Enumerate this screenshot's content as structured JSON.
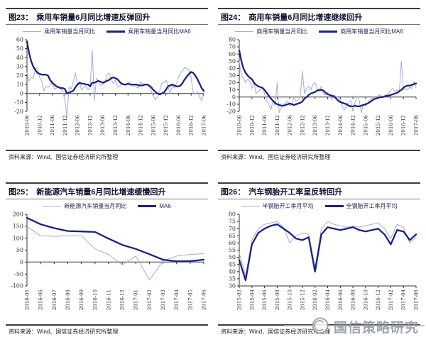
{
  "page": {
    "background": "#ffffff"
  },
  "colors": {
    "thin_line": "#a6acd8",
    "thick_line": "#1c2380",
    "title_text": "#10102e",
    "rule_dark": "#3d3d3d",
    "axis": "#333333",
    "watermark": "#888e9a"
  },
  "watermark": {
    "text": "国信策略研究",
    "logo": "guosen-circle-logo"
  },
  "chart_data": [
    {
      "id": "fig23",
      "type": "line",
      "fig_label": "图23：",
      "title": "乘用车销量6月同比增速反弹回升",
      "legend": [
        {
          "name": "乘用车销量当月同比",
          "style": "thin"
        },
        {
          "name": "乘用车销量当月同比MA6",
          "style": "thick"
        }
      ],
      "source": "资料来源：Wind、国信证券经济研究所整理",
      "x_range": "2010-06 to 2017-06 monthly",
      "xtick_every": 6,
      "xtick_labels": [
        "2010-06",
        "2010-12",
        "2011-06",
        "2011-12",
        "2012-06",
        "2012-12",
        "2013-06",
        "2013-12",
        "2014-06",
        "2014-12",
        "2015-06",
        "2015-12",
        "2016-06",
        "2016-12",
        "2017-06"
      ],
      "ylim": [
        -20,
        60
      ],
      "yticks": [
        60,
        50,
        40,
        30,
        20,
        10,
        0,
        -10,
        -20
      ],
      "grid": false,
      "legend_position": "top",
      "series": [
        {
          "name": "乘用车销量当月同比",
          "style": "thin",
          "values": [
            23,
            14,
            18,
            17,
            27,
            29,
            18,
            14,
            3,
            8,
            7,
            9,
            14,
            5,
            6,
            8,
            5,
            3,
            -8,
            -25,
            7,
            5,
            13,
            23,
            9,
            11,
            4,
            7,
            8,
            4,
            6,
            49,
            -8,
            17,
            13,
            9,
            10,
            12,
            21,
            23,
            16,
            11,
            15,
            7,
            8,
            10,
            11,
            9,
            12,
            13,
            8,
            9,
            7,
            6,
            13,
            11,
            9,
            10,
            8,
            3,
            -3,
            -7,
            -3,
            3,
            11,
            12,
            15,
            9,
            -1,
            9,
            6,
            11,
            18,
            23,
            26,
            29,
            28,
            26,
            17,
            1,
            -1,
            2,
            -4,
            -8,
            2
          ]
        },
        {
          "name": "乘用车销量当月同比MA6",
          "style": "thick",
          "values": [
            58,
            45,
            36,
            30,
            26,
            23,
            22,
            21,
            21,
            21,
            20,
            15,
            12,
            10,
            8,
            7,
            6,
            6,
            5,
            0,
            1,
            2,
            3,
            7,
            10,
            12,
            11,
            11,
            10,
            10,
            8,
            12,
            12,
            13,
            14,
            13,
            12,
            13,
            14,
            15,
            17,
            18,
            17,
            16,
            13,
            11,
            10,
            10,
            11,
            10,
            10,
            10,
            10,
            9,
            9,
            9,
            10,
            10,
            9,
            7,
            4,
            2,
            0,
            -1,
            0,
            1,
            4,
            8,
            9,
            10,
            9,
            8,
            8,
            9,
            12,
            16,
            19,
            22,
            24,
            23,
            20,
            16,
            11,
            6,
            3
          ]
        }
      ]
    },
    {
      "id": "fig24",
      "type": "line",
      "fig_label": "图24：",
      "title": "商用车销量6月同比增速继续回升",
      "legend": [
        {
          "name": "商用车销量当月同比",
          "style": "thin"
        },
        {
          "name": "商用车销量当月同比MA6",
          "style": "thick"
        }
      ],
      "source": "资料来源：Wind、国信证券经济研究所整理",
      "x_range": "2010-06 to 2017-06 monthly",
      "xtick_every": 6,
      "xtick_labels": [
        "2010-06",
        "2010-12",
        "2011-06",
        "2011-12",
        "2012-06",
        "2012-12",
        "2013-06",
        "2013-12",
        "2014-06",
        "2014-12",
        "2015-06",
        "2015-12",
        "2016-06",
        "2016-12",
        "2017-06"
      ],
      "ylim": [
        -20,
        80
      ],
      "yticks": [
        80,
        70,
        60,
        50,
        40,
        30,
        20,
        10,
        0,
        -10,
        -20
      ],
      "grid": false,
      "legend_position": "top",
      "series": [
        {
          "name": "商用车销量当月同比",
          "style": "thin",
          "values": [
            50,
            30,
            27,
            20,
            25,
            22,
            12,
            20,
            5,
            8,
            10,
            13,
            5,
            -5,
            -10,
            -18,
            -5,
            -12,
            20,
            -22,
            -15,
            -10,
            -8,
            -5,
            -12,
            -10,
            0,
            -6,
            -4,
            2,
            36,
            5,
            12,
            15,
            10,
            18,
            20,
            12,
            8,
            15,
            5,
            3,
            6,
            2,
            -3,
            3,
            1,
            -1,
            -4,
            -15,
            -18,
            -10,
            -8,
            -5,
            -20,
            -8,
            2,
            -5,
            -22,
            -10,
            -13,
            -8,
            -4,
            -2,
            0,
            -3,
            2,
            3,
            -1,
            1,
            2,
            5,
            10,
            12,
            8,
            10,
            6,
            50,
            10,
            12,
            10,
            14,
            12,
            22,
            13
          ]
        },
        {
          "name": "商用车销量当月同比MA6",
          "style": "thick",
          "values": [
            65,
            50,
            40,
            34,
            30,
            27,
            25,
            20,
            17,
            15,
            14,
            13,
            10,
            6,
            2,
            -2,
            -5,
            -8,
            -10,
            -11,
            -12,
            -12,
            -11,
            -10,
            -9,
            -10,
            -11,
            -10,
            -9,
            -8,
            -6,
            -2,
            0,
            3,
            5,
            6,
            7,
            9,
            10,
            10,
            9,
            6,
            4,
            3,
            2,
            1,
            -2,
            -5,
            -7,
            -8,
            -9,
            -10,
            -12,
            -13,
            -13,
            -12,
            -13,
            -13,
            -12,
            -11,
            -10,
            -9,
            -7,
            -5,
            -3,
            -2,
            -1,
            0,
            0,
            1,
            2,
            2,
            3,
            4,
            5,
            6,
            8,
            10,
            13,
            15,
            16,
            16,
            17,
            18,
            19
          ]
        }
      ]
    },
    {
      "id": "fig25",
      "type": "line",
      "fig_label": "图25：",
      "title": "新能源汽车销量6月同比增速缓慢回升",
      "legend": [
        {
          "name": "新能源汽车销量当月同比",
          "style": "thin"
        },
        {
          "name": "MA6",
          "style": "thick"
        }
      ],
      "source": "资料来源：Wind、国信证券经济研究所整理",
      "x_range": "2016-05 to 2017-06 monthly",
      "xtick_every": 1,
      "xtick_labels": [
        "2016-05",
        "2016-06",
        "2016-07",
        "2016-08",
        "2016-09",
        "2016-10",
        "2016-11",
        "2016-12",
        "2017-01",
        "2017-02",
        "2017-03",
        "2017-04",
        "2017-05",
        "2017-06"
      ],
      "ylim": [
        -100,
        200
      ],
      "yticks": [
        200,
        150,
        100,
        50,
        0,
        -50,
        -100
      ],
      "grid": false,
      "legend_position": "top",
      "series": [
        {
          "name": "新能源汽车销量当月同比",
          "style": "thin",
          "values": [
            150,
            110,
            108,
            110,
            110,
            55,
            32,
            -12,
            25,
            -75,
            5,
            25,
            32,
            35
          ]
        },
        {
          "name": "MA6",
          "style": "thick",
          "values": [
            185,
            158,
            142,
            130,
            128,
            126,
            98,
            72,
            55,
            33,
            10,
            3,
            4,
            10
          ]
        }
      ]
    },
    {
      "id": "fig26",
      "type": "line",
      "fig_label": "图26：",
      "title": "汽车钢胎开工率呈反转回升",
      "legend": [
        {
          "name": "半钢胎开工率月平均",
          "style": "thin"
        },
        {
          "name": "全钢胎开工率月平均",
          "style": "thick"
        }
      ],
      "source": "资料来源：Wind、国信证券经济研究所整理",
      "x_range": "2015-02 to 2017-06 monthly",
      "xtick_every": 2,
      "xtick_labels": [
        "2015-02",
        "2015-04",
        "2015-06",
        "2015-08",
        "2015-10",
        "2015-12",
        "2016-02",
        "2016-04",
        "2016-06",
        "2016-08",
        "2016-10",
        "2016-12",
        "2017-02",
        "2017-04",
        "2017-06"
      ],
      "ylim": [
        30,
        80
      ],
      "yticks": [
        80,
        75,
        70,
        65,
        60,
        55,
        50,
        45,
        40,
        35,
        30
      ],
      "grid": false,
      "legend_position": "top",
      "series": [
        {
          "name": "半钢胎开工率月平均",
          "style": "thin",
          "values": [
            53,
            37,
            62,
            70,
            73,
            74,
            75,
            71,
            60,
            65,
            67,
            66,
            43,
            70,
            75,
            73,
            72,
            71,
            72,
            71,
            72,
            73,
            74,
            70,
            63,
            73,
            71,
            60,
            64
          ]
        },
        {
          "name": "全钢胎开工率月平均",
          "style": "thick",
          "values": [
            48,
            34,
            59,
            67,
            70,
            72,
            73,
            70,
            67,
            63,
            62,
            64,
            40,
            66,
            71,
            70,
            69,
            70,
            71,
            69,
            68,
            69,
            70,
            66,
            59,
            69,
            68,
            62,
            66
          ]
        }
      ]
    }
  ]
}
